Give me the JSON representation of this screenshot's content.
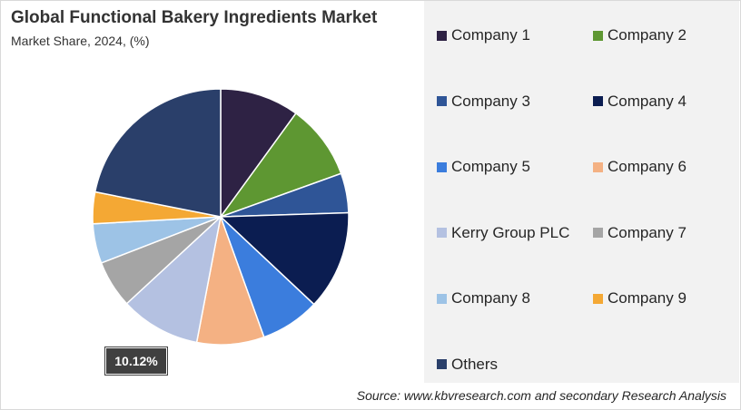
{
  "title": "Global Functional Bakery Ingredients Market",
  "subtitle": "Market Share, 2024, (%)",
  "source": "Source: www.kbvresearch.com and secondary Research Analysis",
  "chart_data": {
    "type": "pie",
    "title": "Global Functional Bakery Ingredients Market",
    "subtitle": "Market Share, 2024, (%)",
    "legend_placement": "right",
    "labels": [
      "Company 1",
      "Company 2",
      "Company 3",
      "Company 4",
      "Company 5",
      "Company 6",
      "Kerry Group PLC",
      "Company 7",
      "Company 8",
      "Company 9",
      "Others"
    ],
    "values": [
      10.0,
      9.5,
      5.0,
      12.5,
      7.5,
      8.5,
      10.12,
      6.0,
      5.0,
      4.0,
      21.88
    ],
    "colors": [
      "#2e2244",
      "#5e9732",
      "#2f5597",
      "#0b1d51",
      "#3b7ddd",
      "#f4b183",
      "#b4c1e1",
      "#a5a5a5",
      "#9dc3e6",
      "#f4a834",
      "#2a3f6a"
    ],
    "data_labels": [
      {
        "label": "Kerry Group PLC",
        "text": "10.12%"
      }
    ]
  }
}
